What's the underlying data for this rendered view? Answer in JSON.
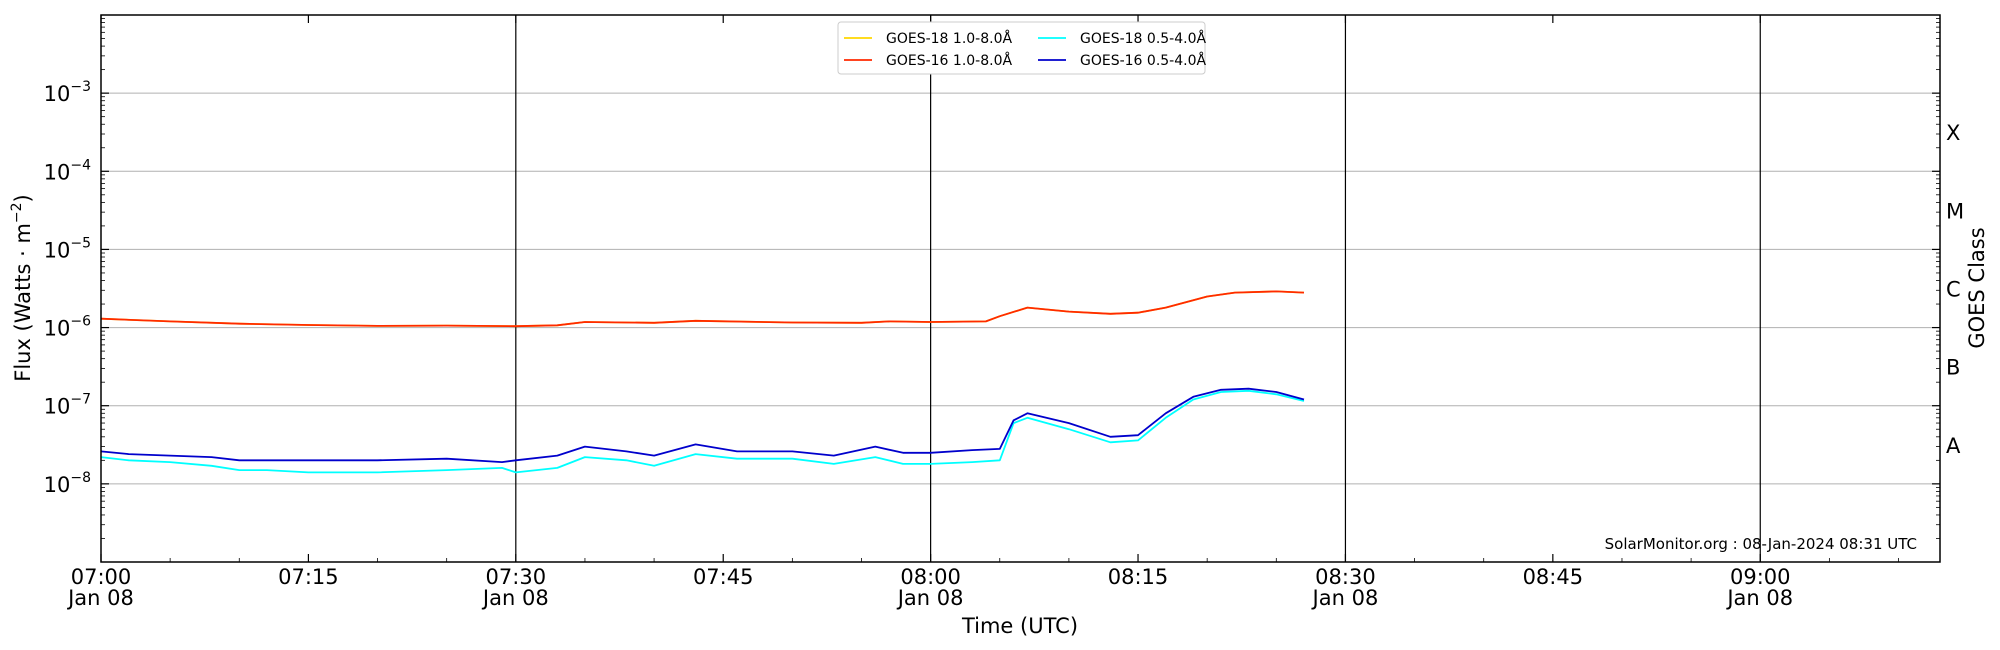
{
  "chart_data": {
    "type": "line",
    "xlabel": "Time (UTC)",
    "ylabel": "Flux (Watts · m⁻²)",
    "y2label": "GOES Class",
    "credit": "SolarMonitor.org : 08-Jan-2024 08:31 UTC",
    "y_scale": "log",
    "ylim": [
      1e-09,
      0.01
    ],
    "xlim": [
      "07:00",
      "09:13"
    ],
    "grid": "horizontal",
    "legend_position": "top-center",
    "x_ticks": [
      {
        "value": "07:00",
        "line1": "07:00",
        "line2": "Jan 08",
        "vline": false
      },
      {
        "value": "07:15",
        "line1": "07:15",
        "line2": "",
        "vline": false
      },
      {
        "value": "07:30",
        "line1": "07:30",
        "line2": "Jan 08",
        "vline": true
      },
      {
        "value": "07:45",
        "line1": "07:45",
        "line2": "",
        "vline": false
      },
      {
        "value": "08:00",
        "line1": "08:00",
        "line2": "Jan 08",
        "vline": true
      },
      {
        "value": "08:15",
        "line1": "08:15",
        "line2": "",
        "vline": false
      },
      {
        "value": "08:30",
        "line1": "08:30",
        "line2": "Jan 08",
        "vline": true
      },
      {
        "value": "08:45",
        "line1": "08:45",
        "line2": "",
        "vline": false
      },
      {
        "value": "09:00",
        "line1": "09:00",
        "line2": "Jan 08",
        "vline": true
      }
    ],
    "y_ticks": [
      {
        "value": 1e-08,
        "exp": "−8"
      },
      {
        "value": 1e-07,
        "exp": "−7"
      },
      {
        "value": 1e-06,
        "exp": "−6"
      },
      {
        "value": 1e-05,
        "exp": "−5"
      },
      {
        "value": 0.0001,
        "exp": "−4"
      },
      {
        "value": 0.001,
        "exp": "−3"
      }
    ],
    "goes_classes": [
      {
        "label": "A",
        "value": 3.16e-08
      },
      {
        "label": "B",
        "value": 3.16e-07
      },
      {
        "label": "C",
        "value": 3.16e-06
      },
      {
        "label": "M",
        "value": 3.16e-05
      },
      {
        "label": "X",
        "value": 0.000316
      }
    ],
    "series": [
      {
        "name": "GOES-18 1.0-8.0Å",
        "color": "#ffd700",
        "x": [
          "07:00",
          "07:05",
          "07:10",
          "07:15",
          "07:20",
          "07:25",
          "07:30",
          "07:33",
          "07:35",
          "07:40",
          "07:43",
          "07:50",
          "07:55",
          "07:57",
          "08:00",
          "08:04",
          "08:05",
          "08:07",
          "08:10",
          "08:13",
          "08:15",
          "08:17",
          "08:20",
          "08:22",
          "08:25",
          "08:27"
        ],
        "y": [
          1.3e-06,
          1.2e-06,
          1.12e-06,
          1.08e-06,
          1.05e-06,
          1.06e-06,
          1.04e-06,
          1.07e-06,
          1.18e-06,
          1.15e-06,
          1.22e-06,
          1.16e-06,
          1.15e-06,
          1.2e-06,
          1.18e-06,
          1.2e-06,
          1.4e-06,
          1.8e-06,
          1.6e-06,
          1.5e-06,
          1.55e-06,
          1.8e-06,
          2.5e-06,
          2.8e-06,
          2.9e-06,
          2.8e-06
        ]
      },
      {
        "name": "GOES-16 1.0-8.0Å",
        "color": "#ff2a00",
        "x": [
          "07:00",
          "07:05",
          "07:10",
          "07:15",
          "07:20",
          "07:25",
          "07:30",
          "07:33",
          "07:35",
          "07:40",
          "07:43",
          "07:50",
          "07:55",
          "07:57",
          "08:00",
          "08:04",
          "08:05",
          "08:07",
          "08:10",
          "08:13",
          "08:15",
          "08:17",
          "08:20",
          "08:22",
          "08:25",
          "08:27"
        ],
        "y": [
          1.3e-06,
          1.2e-06,
          1.12e-06,
          1.08e-06,
          1.05e-06,
          1.06e-06,
          1.04e-06,
          1.07e-06,
          1.18e-06,
          1.15e-06,
          1.22e-06,
          1.16e-06,
          1.15e-06,
          1.2e-06,
          1.18e-06,
          1.2e-06,
          1.4e-06,
          1.8e-06,
          1.6e-06,
          1.5e-06,
          1.55e-06,
          1.8e-06,
          2.5e-06,
          2.8e-06,
          2.9e-06,
          2.8e-06
        ]
      },
      {
        "name": "GOES-18 0.5-4.0Å",
        "color": "#00ffff",
        "x": [
          "07:00",
          "07:02",
          "07:05",
          "07:08",
          "07:10",
          "07:12",
          "07:15",
          "07:20",
          "07:25",
          "07:29",
          "07:30",
          "07:33",
          "07:35",
          "07:38",
          "07:40",
          "07:43",
          "07:46",
          "07:50",
          "07:53",
          "07:56",
          "07:58",
          "08:00",
          "08:03",
          "08:05",
          "08:06",
          "08:07",
          "08:10",
          "08:13",
          "08:15",
          "08:17",
          "08:19",
          "08:21",
          "08:23",
          "08:25",
          "08:27"
        ],
        "y": [
          2.2e-08,
          2e-08,
          1.9e-08,
          1.7e-08,
          1.5e-08,
          1.5e-08,
          1.4e-08,
          1.4e-08,
          1.5e-08,
          1.6e-08,
          1.4e-08,
          1.6e-08,
          2.2e-08,
          2e-08,
          1.7e-08,
          2.4e-08,
          2.1e-08,
          2.1e-08,
          1.8e-08,
          2.2e-08,
          1.8e-08,
          1.8e-08,
          1.9e-08,
          2e-08,
          6e-08,
          7e-08,
          5e-08,
          3.4e-08,
          3.6e-08,
          7e-08,
          1.2e-07,
          1.5e-07,
          1.55e-07,
          1.4e-07,
          1.15e-07
        ]
      },
      {
        "name": "GOES-16 0.5-4.0Å",
        "color": "#0000cc",
        "x": [
          "07:00",
          "07:02",
          "07:05",
          "07:08",
          "07:10",
          "07:12",
          "07:15",
          "07:20",
          "07:25",
          "07:29",
          "07:30",
          "07:33",
          "07:35",
          "07:38",
          "07:40",
          "07:43",
          "07:46",
          "07:50",
          "07:53",
          "07:56",
          "07:58",
          "08:00",
          "08:03",
          "08:05",
          "08:06",
          "08:07",
          "08:10",
          "08:13",
          "08:15",
          "08:17",
          "08:19",
          "08:21",
          "08:23",
          "08:25",
          "08:27"
        ],
        "y": [
          2.6e-08,
          2.4e-08,
          2.3e-08,
          2.2e-08,
          2e-08,
          2e-08,
          2e-08,
          2e-08,
          2.1e-08,
          1.9e-08,
          2e-08,
          2.3e-08,
          3e-08,
          2.6e-08,
          2.3e-08,
          3.2e-08,
          2.6e-08,
          2.6e-08,
          2.3e-08,
          3e-08,
          2.5e-08,
          2.5e-08,
          2.7e-08,
          2.8e-08,
          6.5e-08,
          8e-08,
          6e-08,
          4e-08,
          4.2e-08,
          8e-08,
          1.3e-07,
          1.6e-07,
          1.65e-07,
          1.5e-07,
          1.2e-07
        ]
      }
    ]
  }
}
